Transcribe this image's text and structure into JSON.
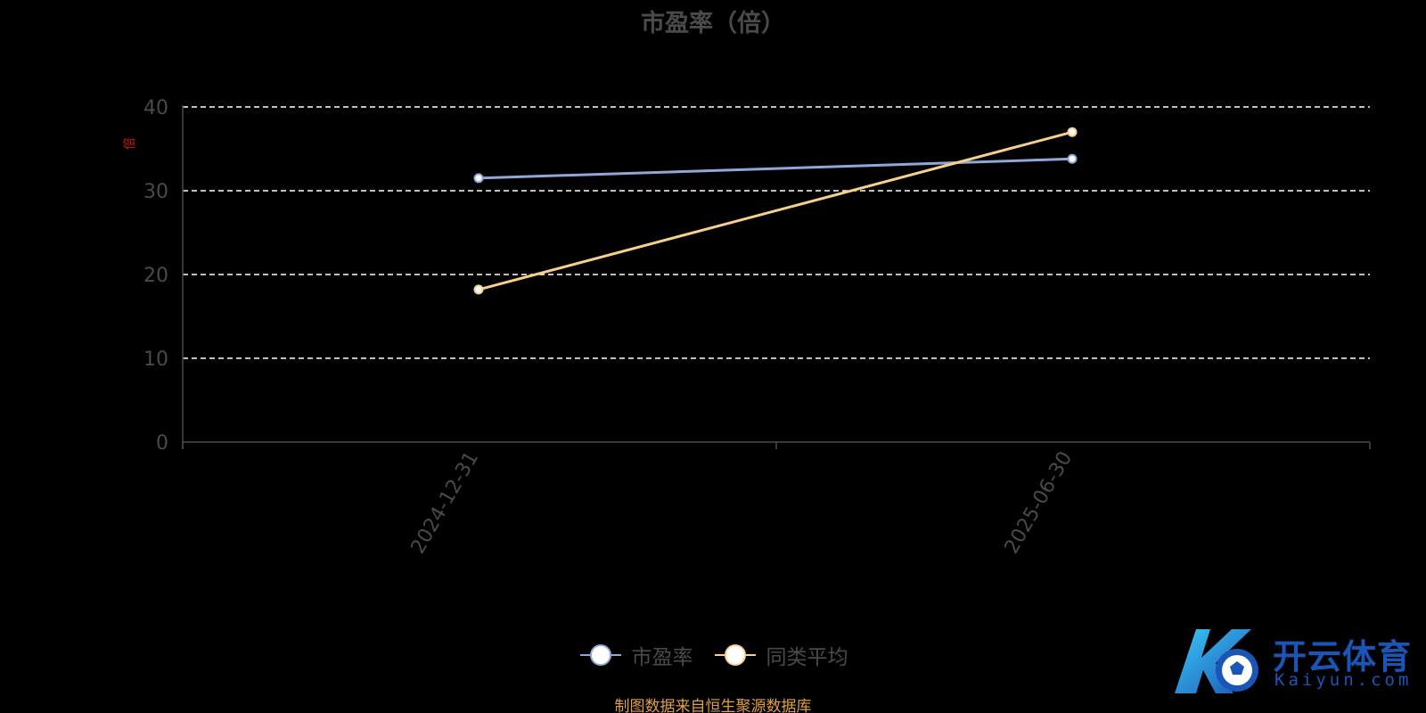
{
  "chart_data": {
    "type": "line",
    "title": "市盈率（倍）",
    "ylabel": "倍",
    "xlabel": "",
    "categories": [
      "2024-12-31",
      "2025-06-30"
    ],
    "ylim": [
      0,
      40
    ],
    "yticks": [
      0,
      10,
      20,
      30,
      40
    ],
    "grid": true,
    "legend_position": "bottom",
    "series": [
      {
        "name": "市盈率",
        "values": [
          31.5,
          33.8
        ],
        "color": "#8fa8d8"
      },
      {
        "name": "同类平均",
        "values": [
          18.2,
          37.0
        ],
        "color": "#f7d08a"
      }
    ]
  },
  "source_note": "制图数据来自恒生聚源数据库",
  "watermark": {
    "chinese": "开云体育",
    "english": "Kaiyun.com",
    "icon": "ky-soccer-logo-icon",
    "color": "#1a56b8"
  }
}
